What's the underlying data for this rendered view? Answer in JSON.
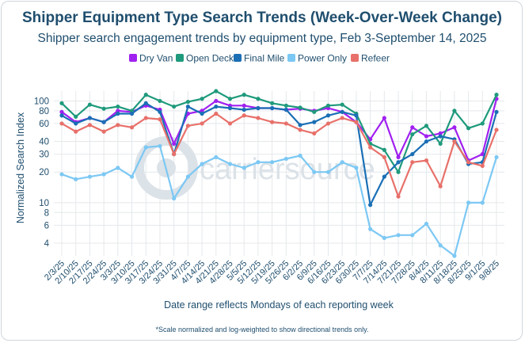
{
  "chart_data": {
    "type": "line",
    "title": "Shipper Equipment Type Search Trends (Week-Over-Week Change)",
    "subtitle": "Shipper search engagement trends by equipment type, Feb 3-September 14, 2025",
    "xlabel": "Date range reflects Mondays of each reporting week",
    "ylabel": "Normalized Search Index",
    "footnote": "*Scale normalized and log-weighted to show directional trends only.",
    "y_scale": "log",
    "ylim": [
      3,
      125
    ],
    "yticks": [
      4,
      6,
      8,
      10,
      20,
      30,
      40,
      60,
      80,
      100
    ],
    "ytick_labels": [
      "4",
      "6",
      "8",
      "10",
      "20",
      "30",
      "40",
      "60",
      "80",
      "100"
    ],
    "watermark": "carriersource",
    "categories": [
      "2/3/25",
      "2/10/25",
      "2/17/25",
      "2/24/25",
      "3/3/25",
      "3/10/25",
      "3/17/25",
      "3/24/25",
      "3/31/25",
      "4/7/25",
      "4/14/25",
      "4/21/25",
      "4/28/25",
      "5/5/25",
      "5/12/25",
      "5/19/25",
      "5/26/25",
      "6/2/25",
      "6/9/25",
      "6/16/25",
      "6/23/25",
      "6/30/25",
      "7/7/25",
      "7/14/25",
      "7/21/25",
      "7/28/25",
      "8/4/25",
      "8/11/25",
      "8/18/25",
      "8/25/25",
      "9/1/25",
      "9/8/25"
    ],
    "series": [
      {
        "name": "Dry Van",
        "color": "#a020f0",
        "values": [
          78,
          62,
          68,
          62,
          80,
          78,
          90,
          82,
          38,
          75,
          80,
          100,
          90,
          90,
          85,
          85,
          82,
          84,
          80,
          85,
          78,
          62,
          42,
          68,
          28,
          55,
          45,
          48,
          55,
          26,
          30,
          105
        ]
      },
      {
        "name": "Open Deck",
        "color": "#1f9a7c",
        "values": [
          95,
          70,
          92,
          84,
          88,
          80,
          115,
          100,
          88,
          98,
          105,
          125,
          105,
          115,
          105,
          95,
          90,
          86,
          78,
          90,
          92,
          75,
          38,
          33,
          20,
          47,
          57,
          38,
          80,
          54,
          60,
          115
        ]
      },
      {
        "name": "Final Mile",
        "color": "#1a6fb5",
        "values": [
          72,
          60,
          68,
          62,
          75,
          75,
          95,
          78,
          30,
          88,
          75,
          88,
          85,
          82,
          85,
          85,
          82,
          58,
          62,
          72,
          78,
          72,
          9.5,
          18,
          25,
          30,
          40,
          45,
          42,
          24,
          25,
          78
        ]
      },
      {
        "name": "Power Only",
        "color": "#7cc8f4",
        "values": [
          19,
          17,
          18,
          19,
          22,
          18,
          35,
          36,
          11,
          18,
          24,
          28,
          24,
          22,
          25,
          25,
          27,
          29,
          20,
          20,
          25,
          22,
          5.5,
          4.5,
          4.8,
          4.8,
          6.2,
          3.8,
          3.0,
          10,
          10,
          28
        ]
      },
      {
        "name": "Refeer",
        "color": "#e8706a",
        "values": [
          60,
          50,
          58,
          50,
          58,
          55,
          68,
          66,
          30,
          57,
          60,
          75,
          60,
          72,
          68,
          62,
          60,
          52,
          48,
          60,
          68,
          62,
          35,
          28,
          11.5,
          25,
          26,
          14.5,
          40,
          25,
          23,
          52
        ]
      }
    ]
  }
}
